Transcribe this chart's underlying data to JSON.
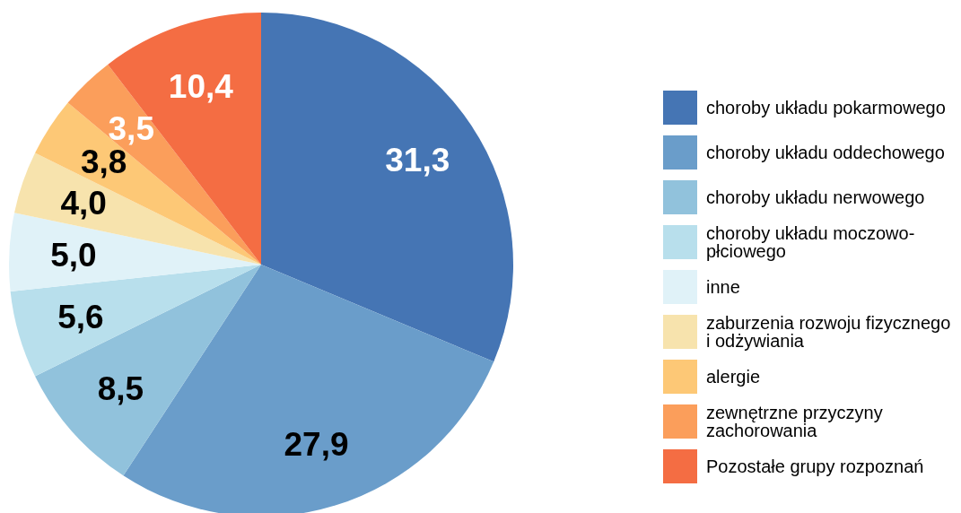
{
  "chart_data": {
    "type": "pie",
    "categories": [
      "choroby układu pokarmowego",
      "choroby układu oddechowego",
      "choroby układu nerwowego",
      "choroby układu moczowo-płciowego",
      "inne",
      "zaburzenia rozwoju fizycznego i odżywiania",
      "alergie",
      "zewnętrzne przyczyny zachorowania",
      "Pozostałe grupy rozpoznań"
    ],
    "values": [
      31.3,
      27.9,
      8.5,
      5.6,
      5.0,
      4.0,
      3.8,
      3.5,
      10.4
    ],
    "value_labels": [
      "31,3",
      "27,9",
      "8,5",
      "5,6",
      "5,0",
      "4,0",
      "3,8",
      "3,5",
      "10,4"
    ],
    "colors": [
      "#4575b4",
      "#6a9dca",
      "#91c2dc",
      "#b8dfec",
      "#e0f2f8",
      "#f7e3ad",
      "#fdc876",
      "#fb9e5b",
      "#f46d43"
    ],
    "legend": "right"
  }
}
